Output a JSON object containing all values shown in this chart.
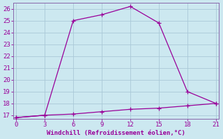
{
  "title": "",
  "xlabel": "Windchill (Refroidissement éolien,°C)",
  "bg_color": "#cce8f0",
  "grid_color": "#aac8d8",
  "line_color": "#990099",
  "spine_color": "#8866aa",
  "line1_x": [
    0,
    3,
    6,
    9,
    12,
    15,
    18,
    21
  ],
  "line1_y": [
    16.8,
    17.0,
    25.0,
    25.5,
    26.2,
    24.8,
    19.0,
    18.0
  ],
  "line2_x": [
    0,
    3,
    6,
    9,
    12,
    15,
    18,
    21
  ],
  "line2_y": [
    16.8,
    17.0,
    17.1,
    17.3,
    17.5,
    17.6,
    17.8,
    18.0
  ],
  "xlim": [
    -0.3,
    21.3
  ],
  "ylim": [
    16.7,
    26.5
  ],
  "xticks": [
    0,
    3,
    6,
    9,
    12,
    15,
    18,
    21
  ],
  "yticks": [
    17,
    18,
    19,
    20,
    21,
    22,
    23,
    24,
    25,
    26
  ],
  "marker": "+",
  "markersize": 4,
  "linewidth": 0.9,
  "linestyle": "-",
  "tick_labelsize": 6.5,
  "xlabel_fontsize": 6.5
}
